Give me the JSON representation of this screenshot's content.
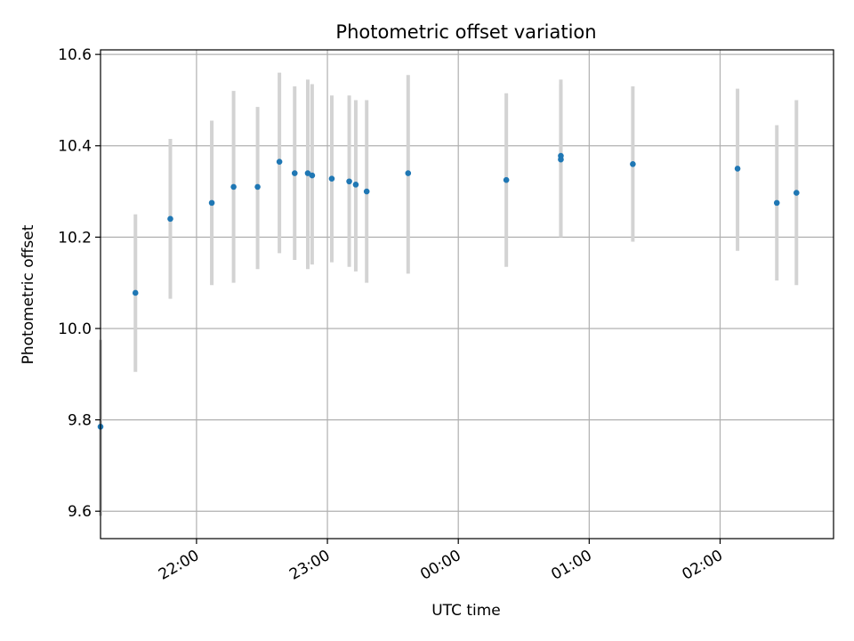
{
  "chart_data": {
    "type": "scatter",
    "title": "Photometric offset variation",
    "xlabel": "UTC time",
    "ylabel": "Photometric offset",
    "x_axis": "time",
    "xlim": [
      "21:16",
      "02:52"
    ],
    "ylim": [
      9.54,
      10.61
    ],
    "x_ticks": [
      "22:00",
      "23:00",
      "00:00",
      "01:00",
      "02:00"
    ],
    "y_ticks": [
      "9.6",
      "9.8",
      "10.0",
      "10.2",
      "10.4",
      "10.6"
    ],
    "grid": true,
    "colors": {
      "points": "#1f77b4",
      "errorbars": "#d3d3d3",
      "grid": "#b0b0b0"
    },
    "points": [
      {
        "x": "21:16",
        "y": 9.785,
        "ylow": 9.59,
        "yhigh": 9.975
      },
      {
        "x": "21:32",
        "y": 10.078,
        "ylow": 9.905,
        "yhigh": 10.25
      },
      {
        "x": "21:48",
        "y": 10.24,
        "ylow": 10.065,
        "yhigh": 10.415
      },
      {
        "x": "22:07",
        "y": 10.275,
        "ylow": 10.095,
        "yhigh": 10.455
      },
      {
        "x": "22:17",
        "y": 10.31,
        "ylow": 10.1,
        "yhigh": 10.52
      },
      {
        "x": "22:28",
        "y": 10.31,
        "ylow": 10.13,
        "yhigh": 10.485
      },
      {
        "x": "22:38",
        "y": 10.365,
        "ylow": 10.165,
        "yhigh": 10.56
      },
      {
        "x": "22:45",
        "y": 10.34,
        "ylow": 10.15,
        "yhigh": 10.53
      },
      {
        "x": "22:51",
        "y": 10.34,
        "ylow": 10.13,
        "yhigh": 10.545
      },
      {
        "x": "22:53",
        "y": 10.335,
        "ylow": 10.14,
        "yhigh": 10.535
      },
      {
        "x": "23:02",
        "y": 10.328,
        "ylow": 10.145,
        "yhigh": 10.51
      },
      {
        "x": "23:10",
        "y": 10.322,
        "ylow": 10.135,
        "yhigh": 10.51
      },
      {
        "x": "23:13",
        "y": 10.315,
        "ylow": 10.125,
        "yhigh": 10.5
      },
      {
        "x": "23:18",
        "y": 10.3,
        "ylow": 10.1,
        "yhigh": 10.5
      },
      {
        "x": "23:37",
        "y": 10.34,
        "ylow": 10.12,
        "yhigh": 10.555
      },
      {
        "x": "00:22",
        "y": 10.325,
        "ylow": 10.135,
        "yhigh": 10.515
      },
      {
        "x": "00:47",
        "y": 10.378,
        "ylow": 10.2,
        "yhigh": 10.545
      },
      {
        "x": "00:47",
        "y": 10.37,
        "ylow": 10.2,
        "yhigh": 10.535
      },
      {
        "x": "01:20",
        "y": 10.36,
        "ylow": 10.19,
        "yhigh": 10.53
      },
      {
        "x": "02:08",
        "y": 10.35,
        "ylow": 10.17,
        "yhigh": 10.525
      },
      {
        "x": "02:26",
        "y": 10.275,
        "ylow": 10.105,
        "yhigh": 10.445
      },
      {
        "x": "02:35",
        "y": 10.297,
        "ylow": 10.095,
        "yhigh": 10.5
      }
    ]
  }
}
